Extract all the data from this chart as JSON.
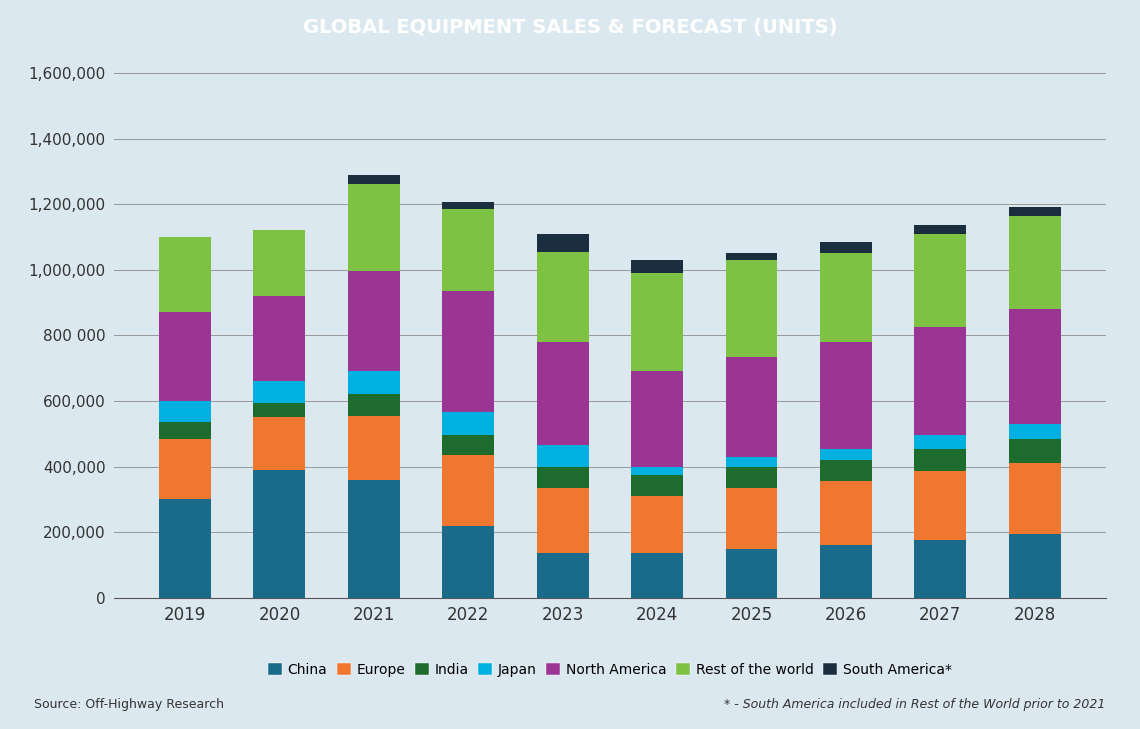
{
  "years": [
    2019,
    2020,
    2021,
    2022,
    2023,
    2024,
    2025,
    2026,
    2027,
    2028
  ],
  "segments": {
    "China": {
      "values": [
        300000,
        390000,
        360000,
        220000,
        135000,
        135000,
        150000,
        160000,
        175000,
        195000
      ],
      "color": "#1a6b8a"
    },
    "Europe": {
      "values": [
        185000,
        160000,
        195000,
        215000,
        200000,
        175000,
        185000,
        195000,
        210000,
        215000
      ],
      "color": "#f07730"
    },
    "India": {
      "values": [
        50000,
        45000,
        65000,
        60000,
        65000,
        65000,
        65000,
        65000,
        70000,
        75000
      ],
      "color": "#1e6b2e"
    },
    "Japan": {
      "values": [
        65000,
        65000,
        70000,
        70000,
        65000,
        25000,
        30000,
        35000,
        40000,
        45000
      ],
      "color": "#00b0e0"
    },
    "North America": {
      "values": [
        270000,
        260000,
        305000,
        370000,
        315000,
        290000,
        305000,
        325000,
        330000,
        350000
      ],
      "color": "#9b3593"
    },
    "Rest of the world": {
      "values": [
        230000,
        200000,
        265000,
        250000,
        275000,
        300000,
        295000,
        270000,
        285000,
        285000
      ],
      "color": "#7dc242"
    },
    "South America*": {
      "values": [
        0,
        0,
        30000,
        20000,
        55000,
        40000,
        20000,
        35000,
        25000,
        25000
      ],
      "color": "#1a2e40"
    }
  },
  "title": "GLOBAL EQUIPMENT SALES & FORECAST (UNITS)",
  "title_bg_color": "#1e6b8a",
  "title_text_color": "#ffffff",
  "bg_color": "#dce8f0",
  "ylim": [
    0,
    1600000
  ],
  "yticks": [
    0,
    200000,
    400000,
    600000,
    800000,
    1000000,
    1200000,
    1400000,
    1600000
  ],
  "ytick_labels": [
    "0",
    "200,000",
    "400,000",
    "600,000",
    "800 000",
    "1,000,000",
    "1,200,000",
    "1,400,000",
    "1,600,000"
  ],
  "source_text": "Source: Off-Highway Research",
  "footnote_text": "* - South America included in Rest of the World prior to 2021",
  "grid_color": "#999999"
}
